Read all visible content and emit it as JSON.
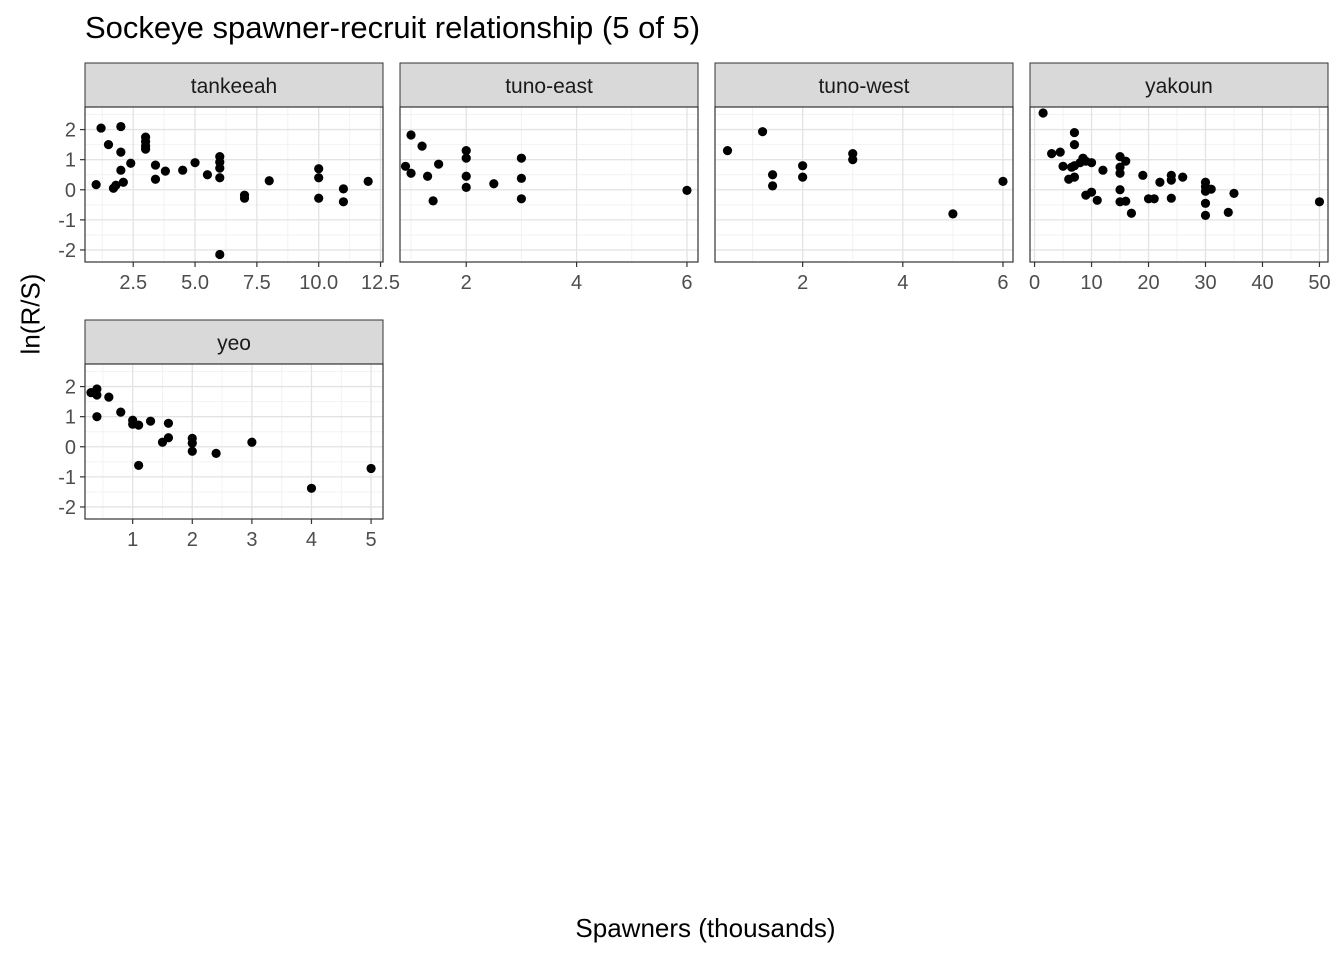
{
  "chart_data": {
    "type": "scatter",
    "title": "Sockeye spawner-recruit relationship (5 of 5)",
    "xlabel": "Spawners (thousands)",
    "ylabel": "ln(R/S)",
    "grid": true,
    "y_ticks": [
      2,
      1,
      0,
      -1,
      -2
    ],
    "y_tick_labels": [
      "2",
      "1",
      "0",
      "-1",
      "-2"
    ],
    "ylim": [
      -2.4,
      2.75
    ],
    "facets": [
      {
        "name": "tankeeah",
        "xlim": [
          0.55,
          12.6
        ],
        "x_ticks": [
          2.5,
          5.0,
          7.5,
          10.0,
          12.5
        ],
        "x_tick_labels": [
          "2.5",
          "5.0",
          "7.5",
          "10.0",
          "12.5"
        ],
        "points": [
          [
            1.0,
            0.17
          ],
          [
            1.2,
            2.05
          ],
          [
            1.5,
            1.5
          ],
          [
            1.7,
            0.05
          ],
          [
            1.8,
            0.15
          ],
          [
            2.0,
            2.1
          ],
          [
            2.0,
            1.25
          ],
          [
            2.0,
            0.65
          ],
          [
            2.1,
            0.25
          ],
          [
            2.4,
            0.88
          ],
          [
            3.0,
            1.75
          ],
          [
            3.0,
            1.6
          ],
          [
            3.0,
            1.45
          ],
          [
            3.0,
            1.35
          ],
          [
            3.4,
            0.82
          ],
          [
            3.4,
            0.35
          ],
          [
            3.8,
            0.62
          ],
          [
            4.5,
            0.65
          ],
          [
            5.0,
            0.9
          ],
          [
            5.5,
            0.5
          ],
          [
            6.0,
            1.1
          ],
          [
            6.0,
            0.92
          ],
          [
            6.0,
            0.72
          ],
          [
            6.0,
            0.4
          ],
          [
            6.0,
            -2.15
          ],
          [
            7.0,
            -0.18
          ],
          [
            7.0,
            -0.28
          ],
          [
            8.0,
            0.3
          ],
          [
            10.0,
            0.7
          ],
          [
            10.0,
            0.4
          ],
          [
            10.0,
            -0.28
          ],
          [
            11.0,
            0.03
          ],
          [
            11.0,
            -0.4
          ],
          [
            12.0,
            0.28
          ]
        ]
      },
      {
        "name": "tuno-east",
        "xlim": [
          0.8,
          6.2
        ],
        "x_ticks": [
          2,
          4,
          6
        ],
        "x_tick_labels": [
          "2",
          "4",
          "6"
        ],
        "points": [
          [
            0.9,
            0.78
          ],
          [
            1.0,
            1.82
          ],
          [
            1.0,
            0.55
          ],
          [
            1.2,
            1.45
          ],
          [
            1.3,
            0.45
          ],
          [
            1.4,
            -0.37
          ],
          [
            1.5,
            0.85
          ],
          [
            2.0,
            1.3
          ],
          [
            2.0,
            1.05
          ],
          [
            2.0,
            0.45
          ],
          [
            2.0,
            0.08
          ],
          [
            2.5,
            0.2
          ],
          [
            3.0,
            1.05
          ],
          [
            3.0,
            0.38
          ],
          [
            3.0,
            -0.3
          ],
          [
            6.0,
            -0.02
          ]
        ]
      },
      {
        "name": "tuno-west",
        "xlim": [
          0.25,
          6.2
        ],
        "x_ticks": [
          2,
          4,
          6
        ],
        "x_tick_labels": [
          "2",
          "4",
          "6"
        ],
        "points": [
          [
            0.5,
            1.3
          ],
          [
            1.2,
            1.93
          ],
          [
            1.4,
            0.5
          ],
          [
            1.4,
            0.13
          ],
          [
            2.0,
            0.8
          ],
          [
            2.0,
            0.42
          ],
          [
            3.0,
            1.2
          ],
          [
            3.0,
            1.0
          ],
          [
            5.0,
            -0.8
          ],
          [
            6.0,
            0.28
          ]
        ]
      },
      {
        "name": "yakoun",
        "xlim": [
          -0.8,
          51.5
        ],
        "x_ticks": [
          0,
          10,
          20,
          30,
          40,
          50
        ],
        "x_tick_labels": [
          "0",
          "10",
          "20",
          "30",
          "40",
          "50"
        ],
        "points": [
          [
            1.5,
            2.55
          ],
          [
            3.0,
            1.2
          ],
          [
            4.5,
            1.25
          ],
          [
            5.0,
            0.78
          ],
          [
            6.0,
            0.35
          ],
          [
            6.5,
            0.75
          ],
          [
            7.0,
            1.9
          ],
          [
            7.0,
            1.5
          ],
          [
            7.0,
            0.8
          ],
          [
            7.0,
            0.42
          ],
          [
            8.0,
            0.9
          ],
          [
            8.5,
            1.05
          ],
          [
            9.0,
            -0.18
          ],
          [
            9.0,
            0.95
          ],
          [
            10.0,
            0.9
          ],
          [
            10.0,
            -0.08
          ],
          [
            11.0,
            -0.35
          ],
          [
            12.0,
            0.65
          ],
          [
            15.0,
            1.1
          ],
          [
            15.0,
            0.75
          ],
          [
            15.0,
            0.55
          ],
          [
            15.0,
            0.0
          ],
          [
            15.0,
            -0.4
          ],
          [
            16.0,
            0.95
          ],
          [
            16.0,
            -0.38
          ],
          [
            17.0,
            -0.78
          ],
          [
            19.0,
            0.48
          ],
          [
            20.0,
            -0.3
          ],
          [
            21.0,
            -0.3
          ],
          [
            22.0,
            0.25
          ],
          [
            24.0,
            0.48
          ],
          [
            24.0,
            0.32
          ],
          [
            24.0,
            -0.28
          ],
          [
            26.0,
            0.42
          ],
          [
            30.0,
            0.25
          ],
          [
            30.0,
            0.1
          ],
          [
            30.0,
            -0.05
          ],
          [
            30.0,
            -0.45
          ],
          [
            30.0,
            -0.85
          ],
          [
            31.0,
            0.02
          ],
          [
            34.0,
            -0.75
          ],
          [
            35.0,
            -0.12
          ],
          [
            50.0,
            -0.4
          ]
        ]
      },
      {
        "name": "yeo",
        "xlim": [
          0.2,
          5.2
        ],
        "x_ticks": [
          1,
          2,
          3,
          4,
          5
        ],
        "x_tick_labels": [
          "1",
          "2",
          "3",
          "4",
          "5"
        ],
        "points": [
          [
            0.3,
            1.8
          ],
          [
            0.4,
            1.92
          ],
          [
            0.4,
            1.72
          ],
          [
            0.4,
            1.0
          ],
          [
            0.6,
            1.65
          ],
          [
            0.8,
            1.15
          ],
          [
            1.0,
            0.88
          ],
          [
            1.0,
            0.75
          ],
          [
            1.1,
            0.72
          ],
          [
            1.1,
            -0.62
          ],
          [
            1.3,
            0.85
          ],
          [
            1.5,
            0.15
          ],
          [
            1.6,
            0.78
          ],
          [
            1.6,
            0.3
          ],
          [
            2.0,
            0.28
          ],
          [
            2.0,
            0.12
          ],
          [
            2.0,
            -0.15
          ],
          [
            2.4,
            -0.22
          ],
          [
            3.0,
            0.15
          ],
          [
            4.0,
            -1.38
          ],
          [
            5.0,
            -0.72
          ]
        ]
      }
    ]
  }
}
